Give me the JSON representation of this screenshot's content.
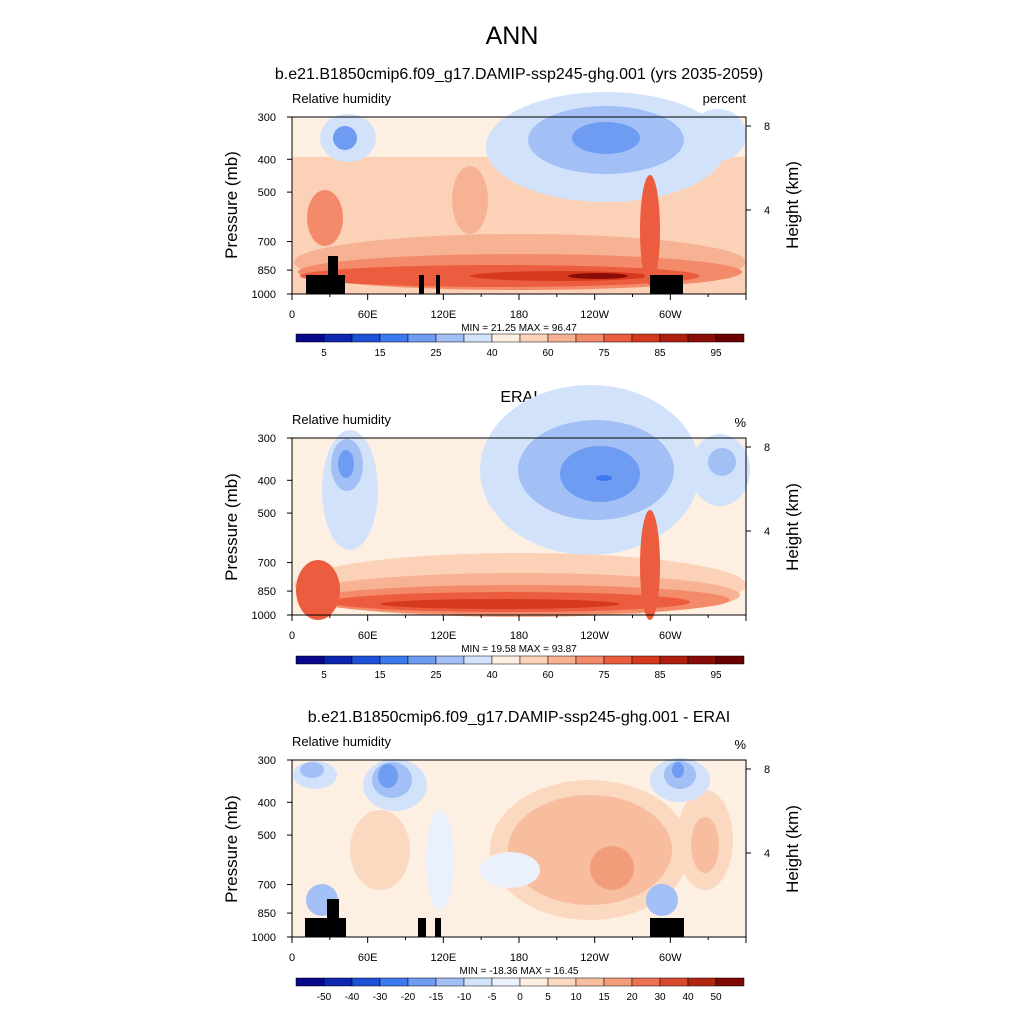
{
  "figure": {
    "title": "ANN"
  },
  "colors": {
    "relhum": [
      "#08088c",
      "#0c26b0",
      "#1e50d8",
      "#3c78ee",
      "#6e9cf2",
      "#a2c0f6",
      "#d2e2fa",
      "#fdf0e2",
      "#fbd2b8",
      "#f7b193",
      "#f38a6a",
      "#ec5c3e",
      "#d63a1e",
      "#b01e10",
      "#8a0c06",
      "#6a0000"
    ],
    "diff": [
      "#08088c",
      "#0c26b0",
      "#1e50d8",
      "#3c78ee",
      "#6e9cf2",
      "#a2c0f6",
      "#d2e2fa",
      "#eaf0fc",
      "#fdf0e2",
      "#fbd8c0",
      "#f8bc9e",
      "#f39c7a",
      "#ec7252",
      "#d8482c",
      "#b0260e",
      "#7e0a04"
    ]
  },
  "panels": [
    {
      "title": "b.e21.B1850cmip6.f09_g17.DAMIP-ssp245-ghg.001 (yrs 2035-2059)",
      "left_label": "Relative humidity",
      "right_label": "percent",
      "min_max": "MIN =  21.25  MAX =  96.47",
      "colorbar_labels": [
        "5",
        "15",
        "25",
        "40",
        "60",
        "75",
        "85",
        "95"
      ],
      "y_axis_title": "Pressure (mb)",
      "right_axis_title": "Height (km)"
    },
    {
      "title": "ERAI",
      "left_label": "Relative humidity",
      "right_label": "%",
      "min_max": "MIN =  19.58  MAX =  93.87",
      "colorbar_labels": [
        "5",
        "15",
        "25",
        "40",
        "60",
        "75",
        "85",
        "95"
      ],
      "y_axis_title": "Pressure (mb)",
      "right_axis_title": "Height (km)"
    },
    {
      "title": "b.e21.B1850cmip6.f09_g17.DAMIP-ssp245-ghg.001 - ERAI",
      "left_label": "Relative humidity",
      "right_label": "%",
      "min_max": "MIN = -18.36  MAX =  16.45",
      "colorbar_labels": [
        "-50",
        "-40",
        "-30",
        "-20",
        "-15",
        "-10",
        "-5",
        "0",
        "5",
        "10",
        "15",
        "20",
        "30",
        "40",
        "50"
      ],
      "y_axis_title": "Pressure (mb)",
      "right_axis_title": "Height (km)"
    }
  ],
  "chart_data": [
    {
      "type": "heatmap",
      "title": "b.e21.B1850cmip6.f09_g17.DAMIP-ssp245-ghg.001 (yrs 2035-2059)",
      "variable": "Relative humidity",
      "units": "percent",
      "xlabel": "",
      "ylabel": "Pressure (mb)",
      "y2label": "Height (km)",
      "x_ticks": [
        "0",
        "60E",
        "120E",
        "180",
        "120W",
        "60W"
      ],
      "x_tick_lons": [
        0,
        60,
        120,
        180,
        240,
        300
      ],
      "y_ticks": [
        300,
        400,
        500,
        700,
        850,
        1000
      ],
      "y2_ticks": [
        8,
        4
      ],
      "xlim": [
        0,
        360
      ],
      "ylim": [
        1000,
        300
      ],
      "levels": [
        5,
        10,
        15,
        20,
        25,
        30,
        40,
        50,
        60,
        65,
        75,
        80,
        85,
        90,
        95
      ],
      "min": 21.25,
      "max": 96.47,
      "topography_mask": true
    },
    {
      "type": "heatmap",
      "title": "ERAI",
      "variable": "Relative humidity",
      "units": "%",
      "xlabel": "",
      "ylabel": "Pressure (mb)",
      "y2label": "Height (km)",
      "x_ticks": [
        "0",
        "60E",
        "120E",
        "180",
        "120W",
        "60W"
      ],
      "x_tick_lons": [
        0,
        60,
        120,
        180,
        240,
        300
      ],
      "y_ticks": [
        300,
        400,
        500,
        700,
        850,
        1000
      ],
      "y2_ticks": [
        8,
        4
      ],
      "xlim": [
        0,
        360
      ],
      "ylim": [
        1000,
        300
      ],
      "levels": [
        5,
        10,
        15,
        20,
        25,
        30,
        40,
        50,
        60,
        65,
        75,
        80,
        85,
        90,
        95
      ],
      "min": 19.58,
      "max": 93.87,
      "topography_mask": false
    },
    {
      "type": "heatmap",
      "title": "b.e21.B1850cmip6.f09_g17.DAMIP-ssp245-ghg.001 - ERAI",
      "variable": "Relative humidity",
      "units": "%",
      "xlabel": "",
      "ylabel": "Pressure (mb)",
      "y2label": "Height (km)",
      "x_ticks": [
        "0",
        "60E",
        "120E",
        "180",
        "120W",
        "60W"
      ],
      "x_tick_lons": [
        0,
        60,
        120,
        180,
        240,
        300
      ],
      "y_ticks": [
        300,
        400,
        500,
        700,
        850,
        1000
      ],
      "y2_ticks": [
        8,
        4
      ],
      "xlim": [
        0,
        360
      ],
      "ylim": [
        1000,
        300
      ],
      "levels": [
        -50,
        -40,
        -30,
        -20,
        -15,
        -10,
        -5,
        0,
        5,
        10,
        15,
        20,
        30,
        40,
        50
      ],
      "min": -18.36,
      "max": 16.45,
      "topography_mask": true
    }
  ]
}
